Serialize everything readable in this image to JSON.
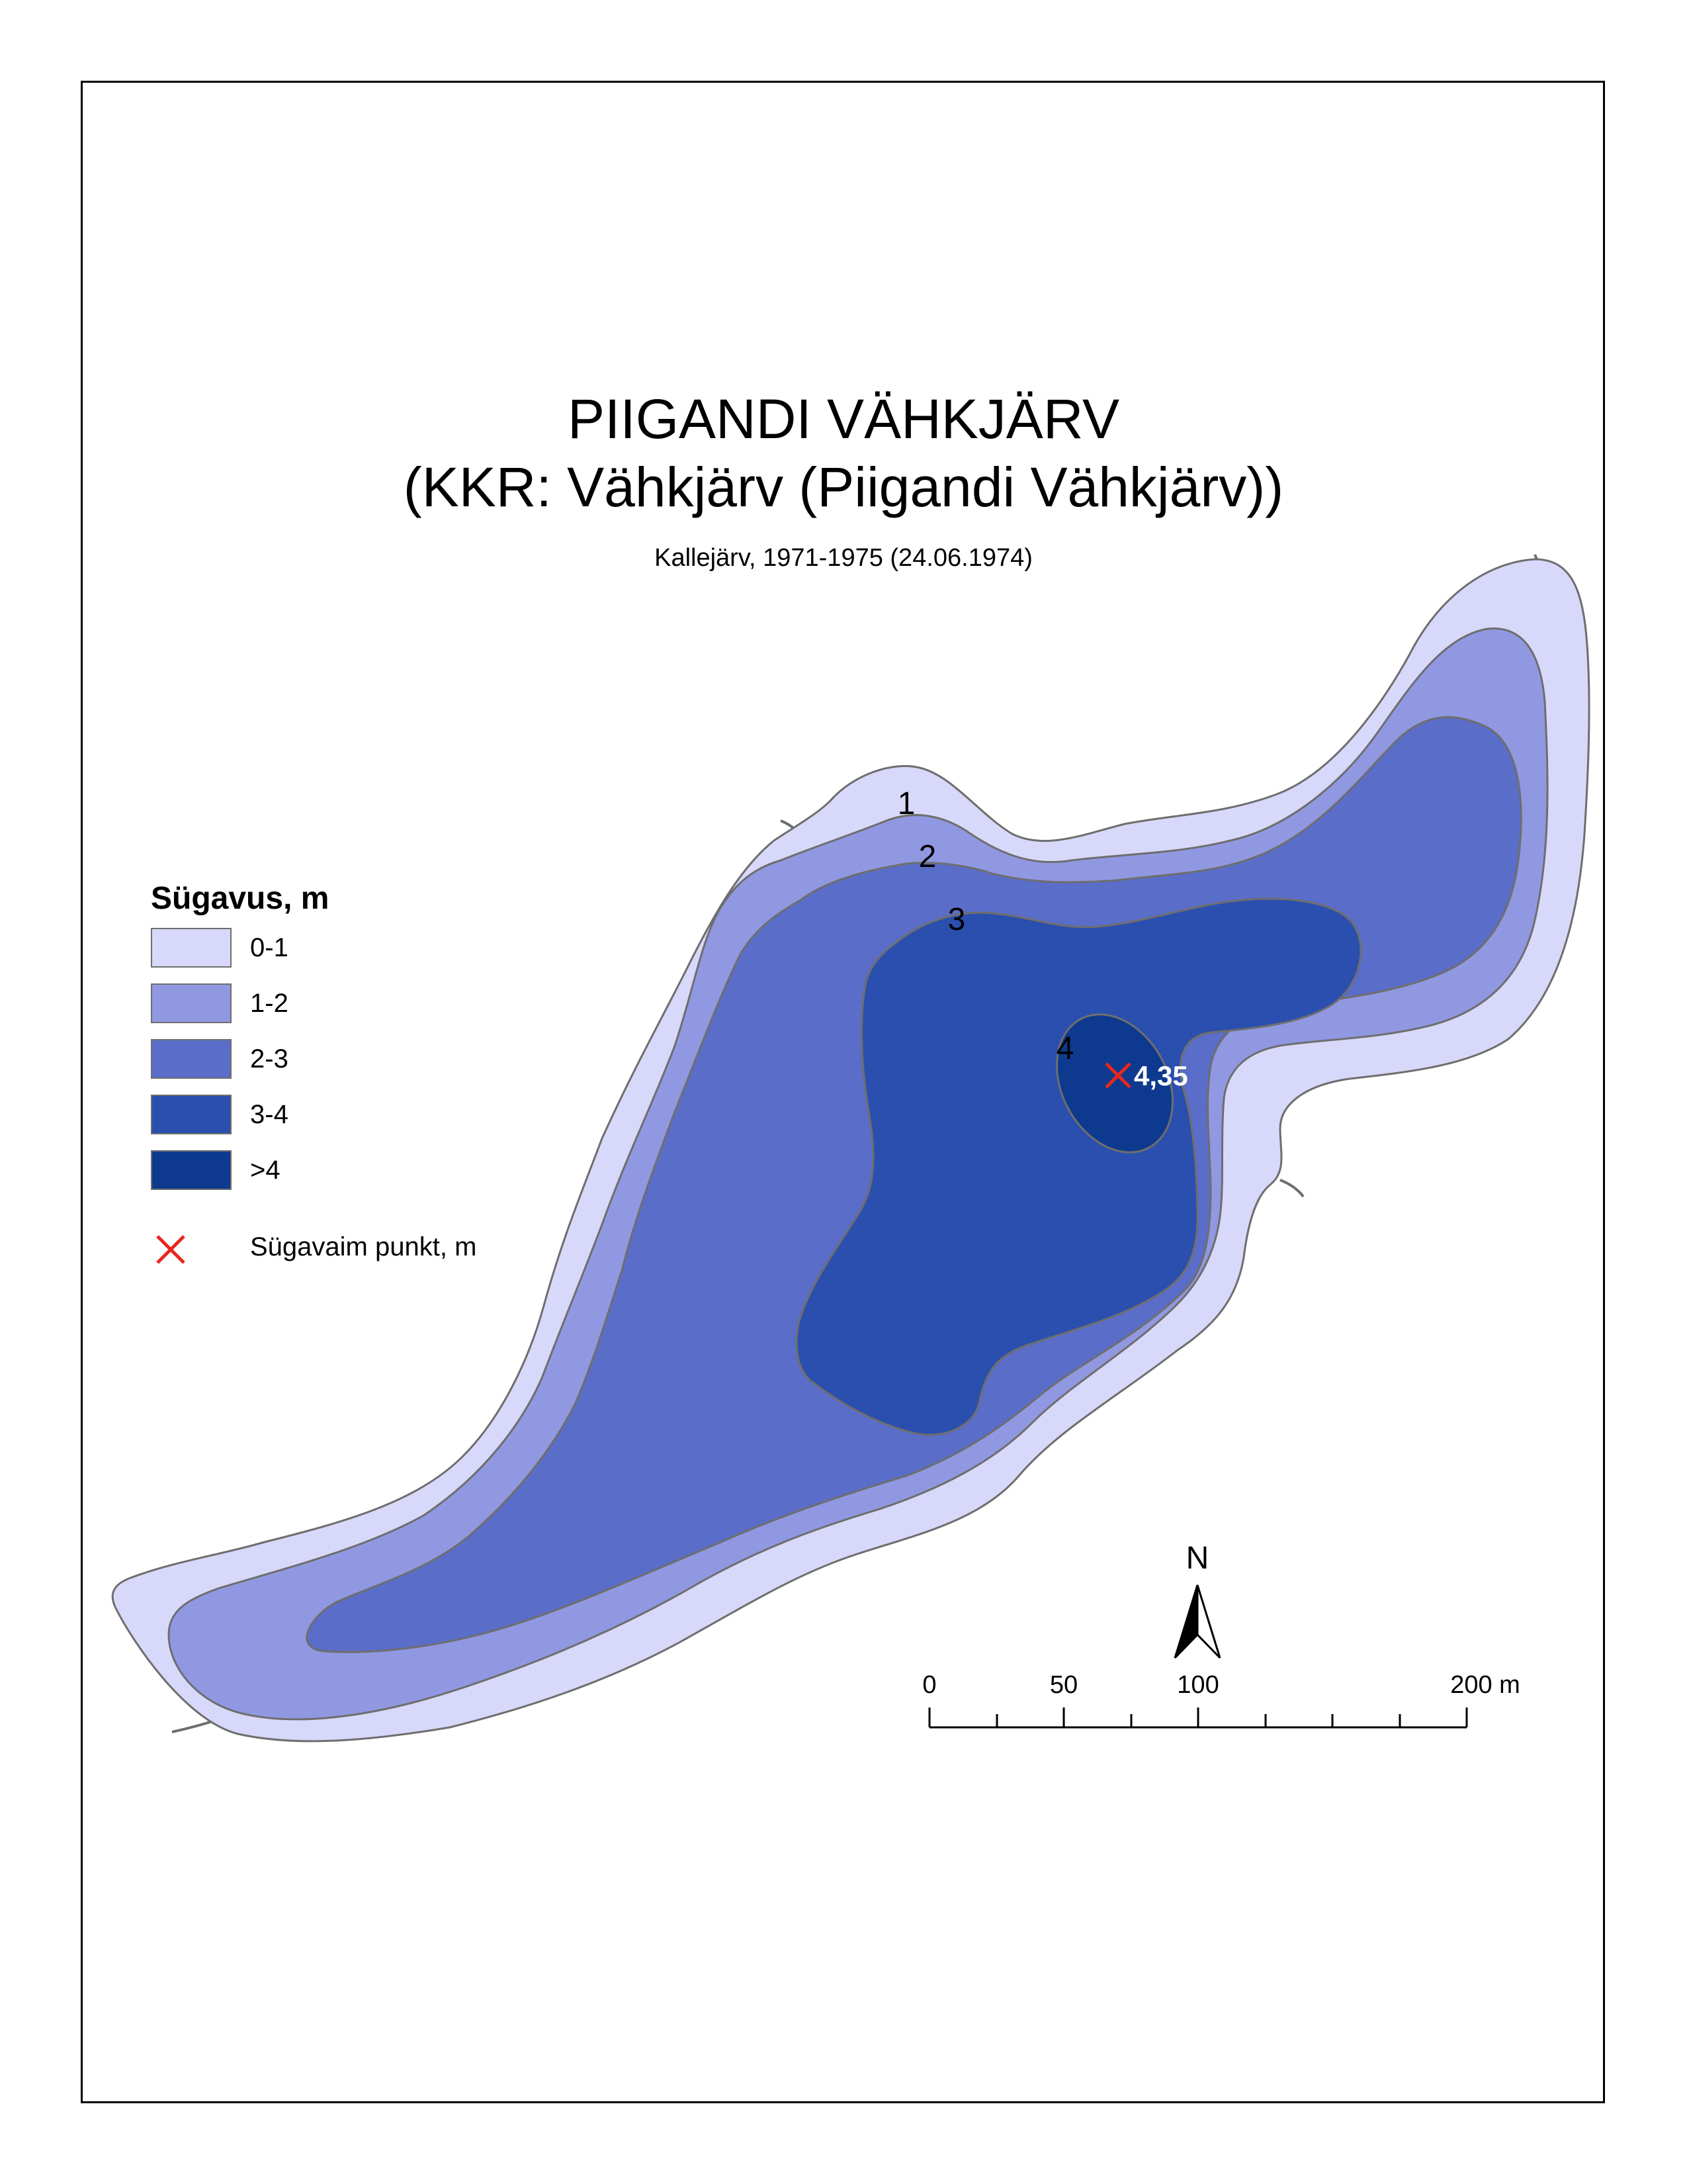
{
  "title": "PIIGANDI VÄHKJÄRV",
  "subtitle": "(KKR: Vähkjärv (Piigandi Vähkjärv))",
  "source": "Kallejärv, 1971-1975 (24.06.1974)",
  "legend": {
    "title": "Sügavus, m",
    "classes": [
      {
        "label": "0-1",
        "color": "#d8d8fa"
      },
      {
        "label": "1-2",
        "color": "#9198e2"
      },
      {
        "label": "2-3",
        "color": "#5a6dc8"
      },
      {
        "label": "3-4",
        "color": "#2a4fae"
      },
      {
        "label": ">4",
        "color": "#0d3a8e"
      }
    ],
    "deepest_point_label": "Sügavaim punkt, m",
    "deepest_point_color": "#e8261d"
  },
  "contour_labels": [
    "1",
    "2",
    "3",
    "4"
  ],
  "deepest_point_value": "4,35",
  "north_arrow_label": "N",
  "scale_bar": {
    "labels": [
      "0",
      "50",
      "100",
      "200 m"
    ]
  },
  "colors": {
    "shoreline": "#6e6e6e",
    "frame": "#000000"
  }
}
